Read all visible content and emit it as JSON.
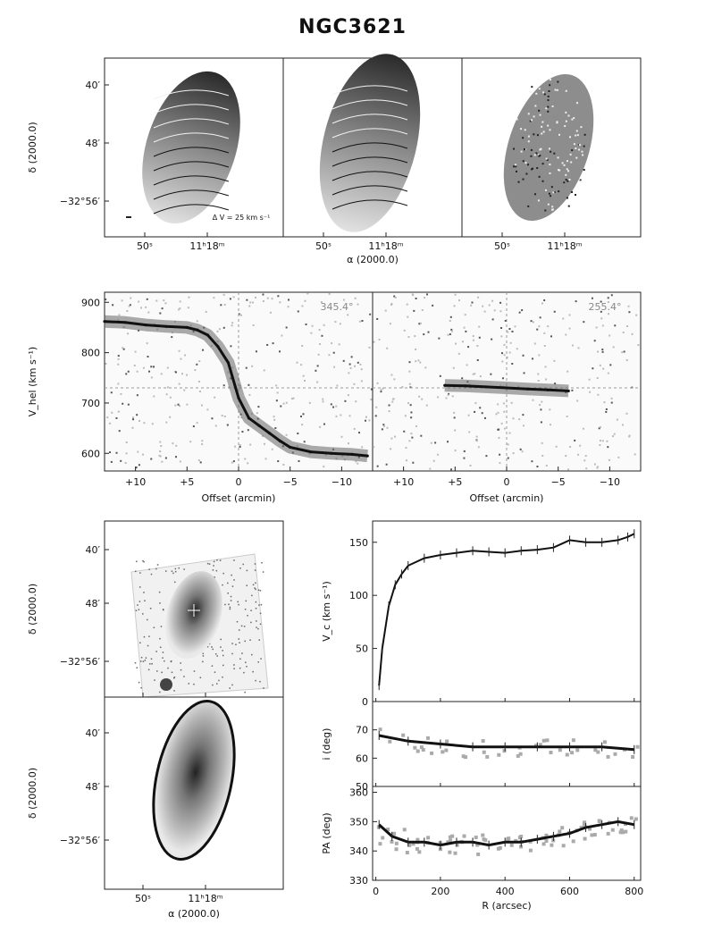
{
  "title": "NGC3621",
  "top_panels": {
    "ra_ticks": [
      "50ˢ",
      "11ʰ18ᵐ"
    ],
    "dec_ticks": [
      "40′",
      "48′",
      "−32°56′"
    ],
    "dec_label": "δ (2000.0)",
    "ra_label": "α (2000.0)",
    "contour_note": "Δ V = 25 km s⁻¹"
  },
  "pv": {
    "left_angle": "345.4°",
    "right_angle": "255.4°",
    "ylabel": "V_hel (km s⁻¹)",
    "xlabel": "Offset (arcmin)",
    "yticks": [
      "900",
      "800",
      "700",
      "600"
    ],
    "xticks": [
      "+10",
      "+5",
      "0",
      "−5",
      "−10"
    ]
  },
  "lower_maps": {
    "ra_ticks": [
      "50ˢ",
      "11ʰ18ᵐ"
    ],
    "dec_ticks": [
      "40′",
      "48′",
      "−32°56′"
    ],
    "dec_label": "δ (2000.0)",
    "ra_label": "α (2000.0)"
  },
  "chart_data": [
    {
      "type": "scatter",
      "title": "",
      "xlabel": "Offset (arcmin)",
      "ylabel": "V_hel (km s⁻¹)",
      "xlim": [
        13,
        -13
      ],
      "ylim": [
        565,
        920
      ],
      "annotation": "345.4°",
      "series": [
        {
          "x": [
            13,
            11,
            9,
            7,
            5,
            4,
            3,
            2,
            1,
            0,
            -1,
            -2,
            -3,
            -4,
            -5,
            -7,
            -9,
            -11,
            -12.5
          ],
          "values": [
            862,
            860,
            855,
            852,
            850,
            845,
            835,
            812,
            780,
            710,
            670,
            655,
            640,
            625,
            612,
            603,
            600,
            598,
            595
          ]
        }
      ]
    },
    {
      "type": "scatter",
      "title": "",
      "xlabel": "Offset (arcmin)",
      "ylabel": "",
      "xlim": [
        13,
        -13
      ],
      "ylim": [
        565,
        920
      ],
      "annotation": "255.4°",
      "series": [
        {
          "x": [
            6,
            4,
            2,
            0,
            -2,
            -4,
            -6
          ],
          "values": [
            735,
            734,
            732,
            730,
            728,
            726,
            724
          ]
        }
      ]
    },
    {
      "type": "line",
      "title": "",
      "xlabel": "",
      "ylabel": "V_c (km s⁻¹)",
      "xlim": [
        -10,
        820
      ],
      "ylim": [
        0,
        170
      ],
      "xticks": [
        "0",
        "200",
        "400",
        "600",
        "800"
      ],
      "yticks": [
        "0",
        "50",
        "100",
        "150"
      ],
      "series": [
        {
          "x": [
            10,
            20,
            40,
            60,
            80,
            100,
            150,
            200,
            250,
            300,
            350,
            400,
            450,
            500,
            550,
            600,
            650,
            700,
            750,
            780,
            800
          ],
          "values": [
            15,
            50,
            90,
            110,
            120,
            128,
            135,
            138,
            140,
            142,
            141,
            140,
            142,
            143,
            145,
            152,
            150,
            150,
            152,
            155,
            158
          ]
        }
      ]
    },
    {
      "type": "line",
      "title": "",
      "xlabel": "",
      "ylabel": "i (deg)",
      "xlim": [
        -10,
        820
      ],
      "ylim": [
        50,
        80
      ],
      "yticks": [
        "50",
        "60",
        "70"
      ],
      "series": [
        {
          "x": [
            10,
            100,
            200,
            300,
            400,
            500,
            600,
            700,
            800
          ],
          "values": [
            68,
            66,
            65,
            64,
            64,
            64,
            64,
            64,
            63
          ]
        }
      ]
    },
    {
      "type": "line",
      "title": "",
      "xlabel": "R (arcsec)",
      "ylabel": "PA (deg)",
      "xlim": [
        -10,
        820
      ],
      "ylim": [
        330,
        362
      ],
      "xticks": [
        "0",
        "200",
        "400",
        "600",
        "800"
      ],
      "yticks": [
        "330",
        "340",
        "350",
        "360"
      ],
      "series": [
        {
          "x": [
            10,
            50,
            100,
            150,
            200,
            250,
            300,
            350,
            400,
            450,
            500,
            550,
            600,
            650,
            700,
            750,
            800
          ],
          "values": [
            349,
            345,
            343,
            343,
            342,
            343,
            343,
            342,
            343,
            343,
            344,
            345,
            346,
            348,
            349,
            350,
            349
          ]
        }
      ]
    }
  ]
}
